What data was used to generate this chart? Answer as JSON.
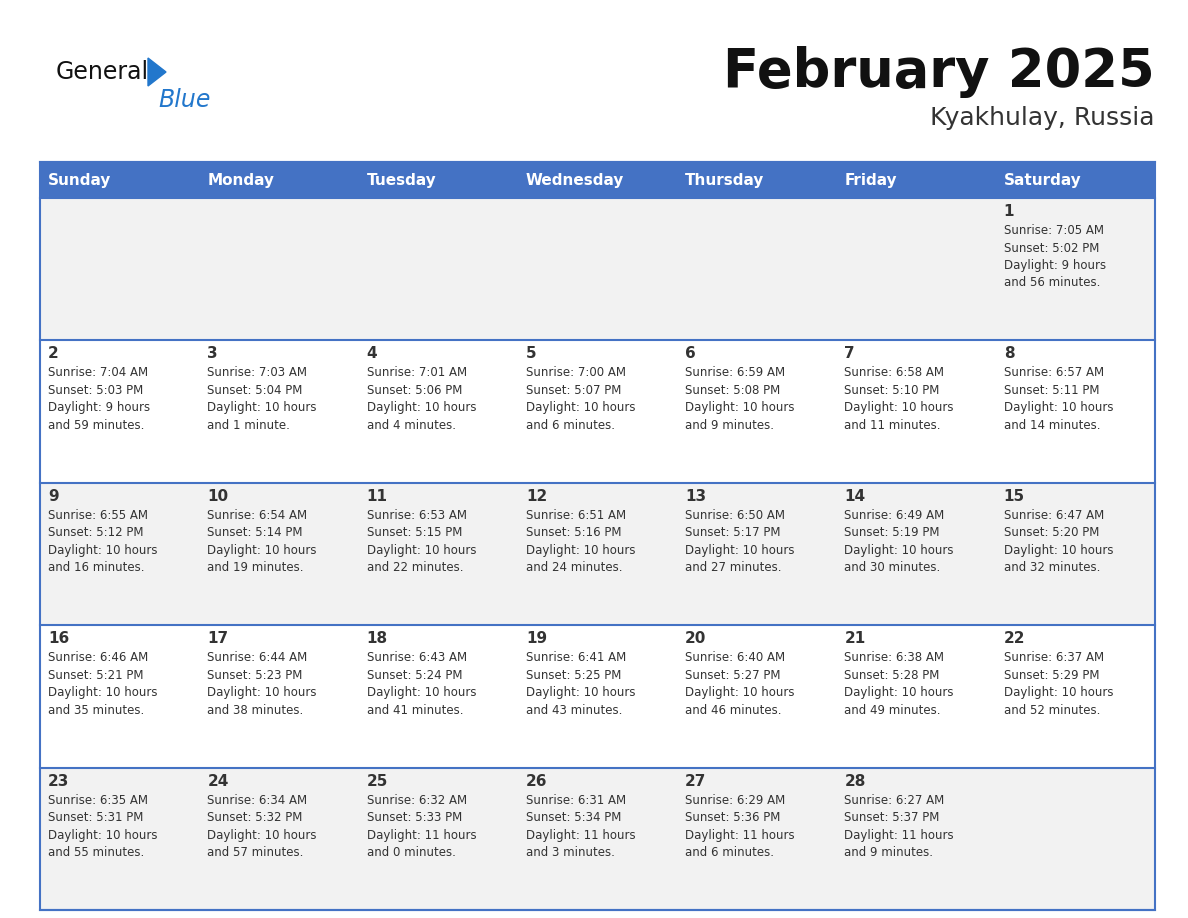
{
  "title": "February 2025",
  "subtitle": "Kyakhulay, Russia",
  "header_bg": "#4472C4",
  "header_text_color": "#FFFFFF",
  "days_of_week": [
    "Sunday",
    "Monday",
    "Tuesday",
    "Wednesday",
    "Thursday",
    "Friday",
    "Saturday"
  ],
  "cell_bg_even": "#F2F2F2",
  "cell_bg_odd": "#FFFFFF",
  "separator_color": "#4472C4",
  "day_text_color": "#333333",
  "info_text_color": "#333333",
  "logo_general_color": "#1a1a1a",
  "logo_blue_color": "#2277CC",
  "logo_triangle_color": "#2277CC",
  "calendar_data": [
    [
      null,
      null,
      null,
      null,
      null,
      null,
      {
        "day": 1,
        "sunrise": "7:05 AM",
        "sunset": "5:02 PM",
        "daylight": "9 hours\nand 56 minutes."
      }
    ],
    [
      {
        "day": 2,
        "sunrise": "7:04 AM",
        "sunset": "5:03 PM",
        "daylight": "9 hours\nand 59 minutes."
      },
      {
        "day": 3,
        "sunrise": "7:03 AM",
        "sunset": "5:04 PM",
        "daylight": "10 hours\nand 1 minute."
      },
      {
        "day": 4,
        "sunrise": "7:01 AM",
        "sunset": "5:06 PM",
        "daylight": "10 hours\nand 4 minutes."
      },
      {
        "day": 5,
        "sunrise": "7:00 AM",
        "sunset": "5:07 PM",
        "daylight": "10 hours\nand 6 minutes."
      },
      {
        "day": 6,
        "sunrise": "6:59 AM",
        "sunset": "5:08 PM",
        "daylight": "10 hours\nand 9 minutes."
      },
      {
        "day": 7,
        "sunrise": "6:58 AM",
        "sunset": "5:10 PM",
        "daylight": "10 hours\nand 11 minutes."
      },
      {
        "day": 8,
        "sunrise": "6:57 AM",
        "sunset": "5:11 PM",
        "daylight": "10 hours\nand 14 minutes."
      }
    ],
    [
      {
        "day": 9,
        "sunrise": "6:55 AM",
        "sunset": "5:12 PM",
        "daylight": "10 hours\nand 16 minutes."
      },
      {
        "day": 10,
        "sunrise": "6:54 AM",
        "sunset": "5:14 PM",
        "daylight": "10 hours\nand 19 minutes."
      },
      {
        "day": 11,
        "sunrise": "6:53 AM",
        "sunset": "5:15 PM",
        "daylight": "10 hours\nand 22 minutes."
      },
      {
        "day": 12,
        "sunrise": "6:51 AM",
        "sunset": "5:16 PM",
        "daylight": "10 hours\nand 24 minutes."
      },
      {
        "day": 13,
        "sunrise": "6:50 AM",
        "sunset": "5:17 PM",
        "daylight": "10 hours\nand 27 minutes."
      },
      {
        "day": 14,
        "sunrise": "6:49 AM",
        "sunset": "5:19 PM",
        "daylight": "10 hours\nand 30 minutes."
      },
      {
        "day": 15,
        "sunrise": "6:47 AM",
        "sunset": "5:20 PM",
        "daylight": "10 hours\nand 32 minutes."
      }
    ],
    [
      {
        "day": 16,
        "sunrise": "6:46 AM",
        "sunset": "5:21 PM",
        "daylight": "10 hours\nand 35 minutes."
      },
      {
        "day": 17,
        "sunrise": "6:44 AM",
        "sunset": "5:23 PM",
        "daylight": "10 hours\nand 38 minutes."
      },
      {
        "day": 18,
        "sunrise": "6:43 AM",
        "sunset": "5:24 PM",
        "daylight": "10 hours\nand 41 minutes."
      },
      {
        "day": 19,
        "sunrise": "6:41 AM",
        "sunset": "5:25 PM",
        "daylight": "10 hours\nand 43 minutes."
      },
      {
        "day": 20,
        "sunrise": "6:40 AM",
        "sunset": "5:27 PM",
        "daylight": "10 hours\nand 46 minutes."
      },
      {
        "day": 21,
        "sunrise": "6:38 AM",
        "sunset": "5:28 PM",
        "daylight": "10 hours\nand 49 minutes."
      },
      {
        "day": 22,
        "sunrise": "6:37 AM",
        "sunset": "5:29 PM",
        "daylight": "10 hours\nand 52 minutes."
      }
    ],
    [
      {
        "day": 23,
        "sunrise": "6:35 AM",
        "sunset": "5:31 PM",
        "daylight": "10 hours\nand 55 minutes."
      },
      {
        "day": 24,
        "sunrise": "6:34 AM",
        "sunset": "5:32 PM",
        "daylight": "10 hours\nand 57 minutes."
      },
      {
        "day": 25,
        "sunrise": "6:32 AM",
        "sunset": "5:33 PM",
        "daylight": "11 hours\nand 0 minutes."
      },
      {
        "day": 26,
        "sunrise": "6:31 AM",
        "sunset": "5:34 PM",
        "daylight": "11 hours\nand 3 minutes."
      },
      {
        "day": 27,
        "sunrise": "6:29 AM",
        "sunset": "5:36 PM",
        "daylight": "11 hours\nand 6 minutes."
      },
      {
        "day": 28,
        "sunrise": "6:27 AM",
        "sunset": "5:37 PM",
        "daylight": "11 hours\nand 9 minutes."
      },
      null
    ]
  ]
}
